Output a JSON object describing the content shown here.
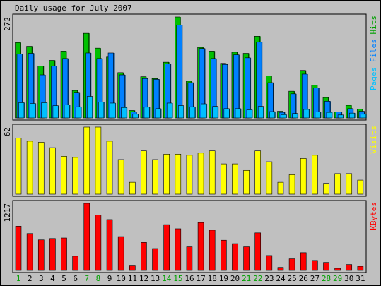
{
  "chart_data": {
    "type": "bar",
    "title": "Daily usage for July 2007",
    "days": [
      "1",
      "2",
      "3",
      "4",
      "5",
      "6",
      "7",
      "8",
      "9",
      "10",
      "11",
      "12",
      "13",
      "14",
      "15",
      "16",
      "17",
      "18",
      "19",
      "20",
      "21",
      "22",
      "23",
      "24",
      "25",
      "26",
      "27",
      "28",
      "29",
      "30",
      "31"
    ],
    "weekend_days": [
      "1",
      "7",
      "8",
      "14",
      "15",
      "21",
      "22",
      "28",
      "29"
    ],
    "panels": [
      {
        "name": "hits-files-pages",
        "max_label": "272",
        "ymax": 272,
        "right_label_parts": [
          {
            "text": "Pages",
            "color": "#00c0ff"
          },
          {
            "text": "/",
            "color": "#c0c0c0"
          },
          {
            "text": "Files",
            "color": "#0080ff"
          },
          {
            "text": "/",
            "color": "#c0c0c0"
          },
          {
            "text": "Hits",
            "color": "#00a000"
          }
        ],
        "series": [
          {
            "name": "Hits",
            "color": "#00c000",
            "values": [
              203,
              193,
              140,
              155,
              180,
              74,
              228,
              188,
              164,
              122,
              20,
              111,
              106,
              150,
              272,
              99,
              190,
              180,
              147,
              177,
              174,
              220,
              113,
              18,
              72,
              128,
              88,
              55,
              16,
              34,
              24
            ]
          },
          {
            "name": "Files",
            "color": "#0080ff",
            "values": [
              172,
              174,
              116,
              140,
              160,
              69,
              175,
              160,
              175,
              116,
              16,
              106,
              104,
              146,
              250,
              95,
              187,
              160,
              144,
              170,
              162,
              204,
              95,
              15,
              65,
              118,
              81,
              45,
              16,
              25,
              18
            ]
          },
          {
            "name": "Pages",
            "color": "#00c0ff",
            "values": [
              41,
              39,
              41,
              33,
              35,
              30,
              58,
              43,
              40,
              28,
              10,
              29,
              25,
              40,
              33,
              30,
              38,
              31,
              25,
              25,
              22,
              31,
              17,
              9,
              12,
              23,
              16,
              15,
              8,
              13,
              10
            ]
          }
        ]
      },
      {
        "name": "visits",
        "max_label": "62",
        "ymax": 62,
        "right_label_parts": [
          {
            "text": "Visits",
            "color": "#ffff00"
          }
        ],
        "series": [
          {
            "name": "Visits",
            "color": "#ffff00",
            "values": [
              52,
              49,
              48,
              43,
              35,
              34,
              62,
              62,
              49,
              32,
              11,
              40,
              32,
              37,
              37,
              36,
              38,
              40,
              28,
              28,
              22,
              40,
              30,
              11,
              18,
              33,
              36,
              10,
              19,
              19,
              13
            ]
          }
        ]
      },
      {
        "name": "kbytes",
        "max_label": "1217",
        "ymax": 1217,
        "right_label_parts": [
          {
            "text": "KBytes",
            "color": "#ff0000"
          }
        ],
        "series": [
          {
            "name": "KBytes",
            "color": "#ff0000",
            "values": [
              803,
              669,
              554,
              579,
              589,
              258,
              1217,
              1007,
              923,
              614,
              95,
              508,
              397,
              831,
              756,
              428,
              869,
              731,
              548,
              486,
              428,
              681,
              270,
              55,
              210,
              322,
              181,
              145,
              38,
              107,
              75
            ]
          }
        ]
      }
    ]
  }
}
